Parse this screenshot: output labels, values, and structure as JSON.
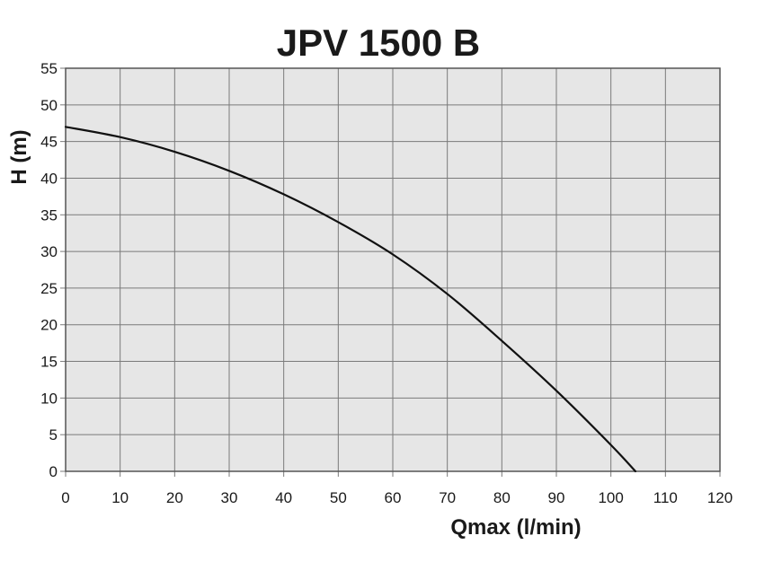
{
  "chart_data": {
    "type": "line",
    "title": "JPV 1500 B",
    "xlabel": "Qmax (l/min)",
    "ylabel": "H (m)",
    "xlim": [
      0,
      120
    ],
    "ylim": [
      0,
      55
    ],
    "x_ticks": [
      0,
      10,
      20,
      30,
      40,
      50,
      60,
      70,
      80,
      90,
      100,
      110,
      120
    ],
    "y_ticks": [
      0,
      5,
      10,
      15,
      20,
      25,
      30,
      35,
      40,
      45,
      50,
      55
    ],
    "grid": true,
    "series": [
      {
        "x": [
          0,
          10,
          20,
          30,
          40,
          50,
          60,
          70,
          80,
          90,
          100,
          104.5
        ],
        "y": [
          47,
          45.6,
          43.6,
          41,
          37.8,
          34,
          29.6,
          24.2,
          17.8,
          11,
          3.6,
          0
        ]
      }
    ],
    "colors": {
      "plot_bg": "#e6e6e6",
      "grid": "#7a7a7a",
      "line": "#111111",
      "text": "#1a1a1a"
    }
  }
}
